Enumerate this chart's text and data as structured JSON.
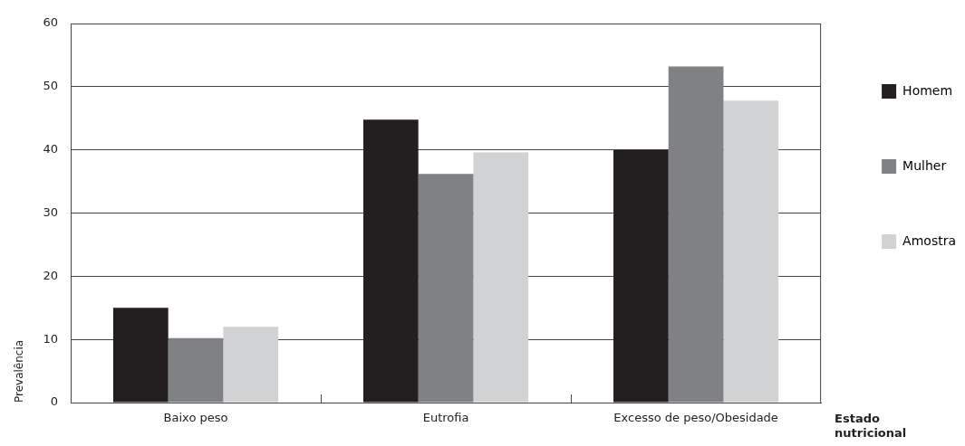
{
  "chart_data": {
    "type": "bar",
    "xlabel": "Estado nutricional",
    "ylabel": "Prevalência",
    "categories": [
      "Baixo peso",
      "Eutrofia",
      "Excesso de peso/Obesidade"
    ],
    "series": [
      {
        "name": "Homem",
        "color": "#231f20",
        "values": [
          15,
          44.8,
          40
        ]
      },
      {
        "name": "Mulher",
        "color": "#808184",
        "values": [
          10.2,
          36.2,
          53.2
        ]
      },
      {
        "name": "Amostra",
        "color": "#d1d2d4",
        "values": [
          12,
          39.6,
          47.8
        ]
      }
    ],
    "ylim": [
      0,
      60
    ],
    "yticks": [
      0,
      10,
      20,
      30,
      40,
      50,
      60
    ],
    "grid": "y",
    "legend": "top right"
  }
}
